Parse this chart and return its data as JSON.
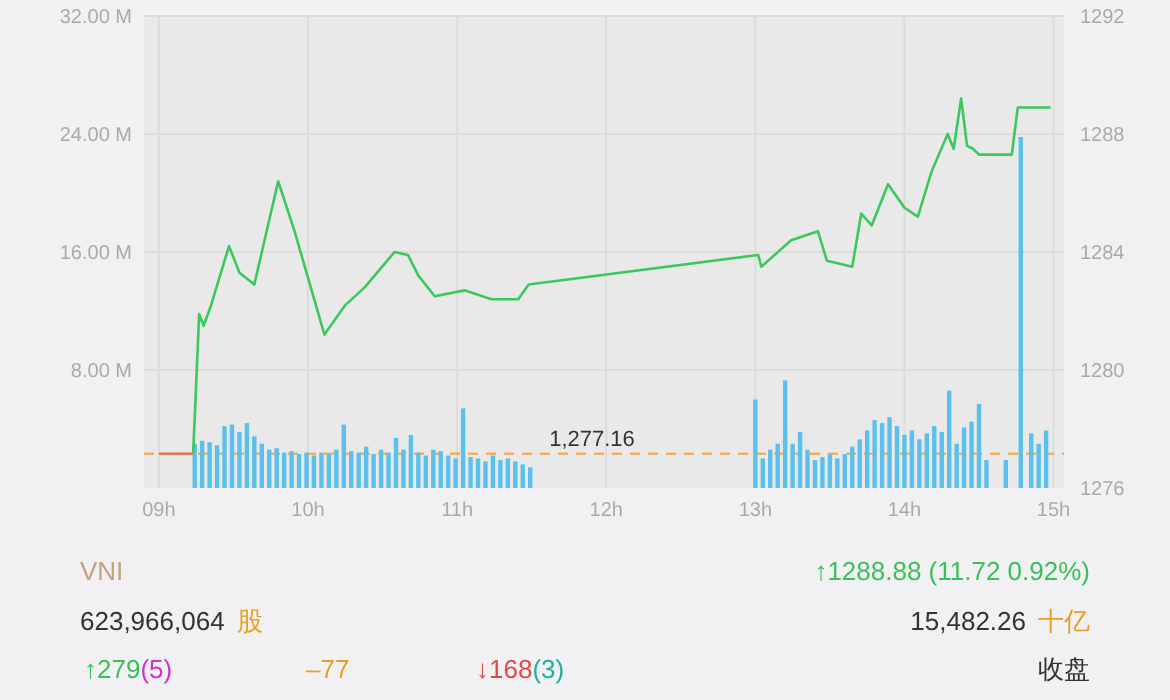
{
  "chart_data": {
    "type": "line",
    "xlim": [
      8.9,
      15.07
    ],
    "xticks": [
      {
        "value": 9,
        "label": "09h"
      },
      {
        "value": 10,
        "label": "10h"
      },
      {
        "value": 11,
        "label": "11h"
      },
      {
        "value": 12,
        "label": "12h"
      },
      {
        "value": 13,
        "label": "13h"
      },
      {
        "value": 14,
        "label": "14h"
      },
      {
        "value": 15,
        "label": "15h"
      }
    ],
    "ylim": [
      0,
      32
    ],
    "yticks": [
      {
        "value": 8,
        "label": "8.00 M"
      },
      {
        "value": 16,
        "label": "16.00 M"
      },
      {
        "value": 24,
        "label": "24.00 M"
      },
      {
        "value": 32,
        "label": "32.00 M"
      }
    ],
    "y2lim": [
      1276,
      1292
    ],
    "y2ticks": [
      1276,
      1280,
      1284,
      1288,
      1292
    ],
    "grid": true,
    "series": [
      {
        "type": "bar",
        "color": "#5bc0eb",
        "x": [
          9.24,
          9.29,
          9.34,
          9.39,
          9.44,
          9.49,
          9.54,
          9.59,
          9.64,
          9.69,
          9.74,
          9.79,
          9.84,
          9.89,
          9.94,
          9.99,
          10.04,
          10.09,
          10.14,
          10.19,
          10.24,
          10.29,
          10.34,
          10.39,
          10.44,
          10.49,
          10.54,
          10.59,
          10.64,
          10.69,
          10.74,
          10.79,
          10.84,
          10.89,
          10.94,
          10.99,
          11.04,
          11.09,
          11.14,
          11.19,
          11.24,
          11.29,
          11.34,
          11.39,
          11.44,
          11.49,
          13.0,
          13.05,
          13.1,
          13.15,
          13.2,
          13.25,
          13.3,
          13.35,
          13.4,
          13.45,
          13.5,
          13.55,
          13.6,
          13.65,
          13.7,
          13.75,
          13.8,
          13.85,
          13.9,
          13.95,
          14.0,
          14.05,
          14.1,
          14.15,
          14.2,
          14.25,
          14.3,
          14.35,
          14.4,
          14.45,
          14.5,
          14.55,
          14.68,
          14.78,
          14.85,
          14.9,
          14.95
        ],
        "values": [
          3.0,
          3.2,
          3.1,
          2.9,
          4.2,
          4.3,
          3.8,
          4.4,
          3.5,
          3.0,
          2.6,
          2.7,
          2.4,
          2.5,
          2.3,
          2.4,
          2.2,
          2.4,
          2.3,
          2.6,
          4.3,
          2.5,
          2.4,
          2.8,
          2.3,
          2.6,
          2.4,
          3.4,
          2.6,
          3.6,
          2.4,
          2.2,
          2.6,
          2.5,
          2.2,
          2.0,
          5.4,
          2.1,
          2.0,
          1.8,
          2.2,
          1.9,
          2.0,
          1.8,
          1.6,
          1.4,
          6.0,
          2.0,
          2.6,
          3.0,
          7.3,
          3.0,
          3.8,
          2.6,
          1.9,
          2.1,
          2.3,
          2.0,
          2.3,
          2.8,
          3.3,
          3.9,
          4.6,
          4.4,
          4.8,
          4.2,
          3.6,
          3.9,
          3.3,
          3.7,
          4.2,
          3.8,
          6.6,
          3.0,
          4.1,
          4.5,
          5.7,
          1.9,
          1.9,
          23.8,
          3.7,
          3.0,
          3.9
        ]
      },
      {
        "type": "line",
        "axis": "y2",
        "color": "#e07a5f",
        "x": [
          9.0,
          9.23
        ],
        "values": [
          1277.16,
          1277.16
        ]
      },
      {
        "axis": "y2",
        "color": "#3cc85a",
        "x": [
          9.23,
          9.27,
          9.3,
          9.35,
          9.47,
          9.54,
          9.64,
          9.8,
          9.91,
          10.11,
          10.25,
          10.38,
          10.58,
          10.67,
          10.74,
          10.85,
          11.05,
          11.23,
          11.41,
          11.48,
          13.02,
          13.04,
          13.24,
          13.42,
          13.48,
          13.65,
          13.71,
          13.78,
          13.89,
          14.0,
          14.09,
          14.18,
          14.29,
          14.33,
          14.38,
          14.42,
          14.46,
          14.5,
          14.72,
          14.76,
          14.98
        ],
        "values": [
          1277.2,
          1281.9,
          1281.5,
          1282.2,
          1284.2,
          1283.3,
          1282.9,
          1286.4,
          1284.7,
          1281.2,
          1282.2,
          1282.8,
          1284.0,
          1283.9,
          1283.2,
          1282.5,
          1282.7,
          1282.4,
          1282.4,
          1282.9,
          1283.9,
          1283.5,
          1284.4,
          1284.7,
          1283.7,
          1283.5,
          1285.3,
          1284.9,
          1286.3,
          1285.5,
          1285.2,
          1286.7,
          1288.0,
          1287.5,
          1289.2,
          1287.6,
          1287.5,
          1287.3,
          1287.3,
          1288.9,
          1288.9
        ]
      }
    ],
    "ref_lines": [
      {
        "axis": "y2",
        "value": 1277.16,
        "label": "1,277.16",
        "color": "#f0b060",
        "line_style": "dashed"
      }
    ],
    "annotations": [
      "VNI",
      "↑1288.88 (11.72 0.92%)",
      "623,966,064",
      "股",
      "15,482.26",
      "十亿",
      "↑279",
      "(5)",
      "–77",
      "↓168",
      "(3)",
      "收盘"
    ]
  }
}
